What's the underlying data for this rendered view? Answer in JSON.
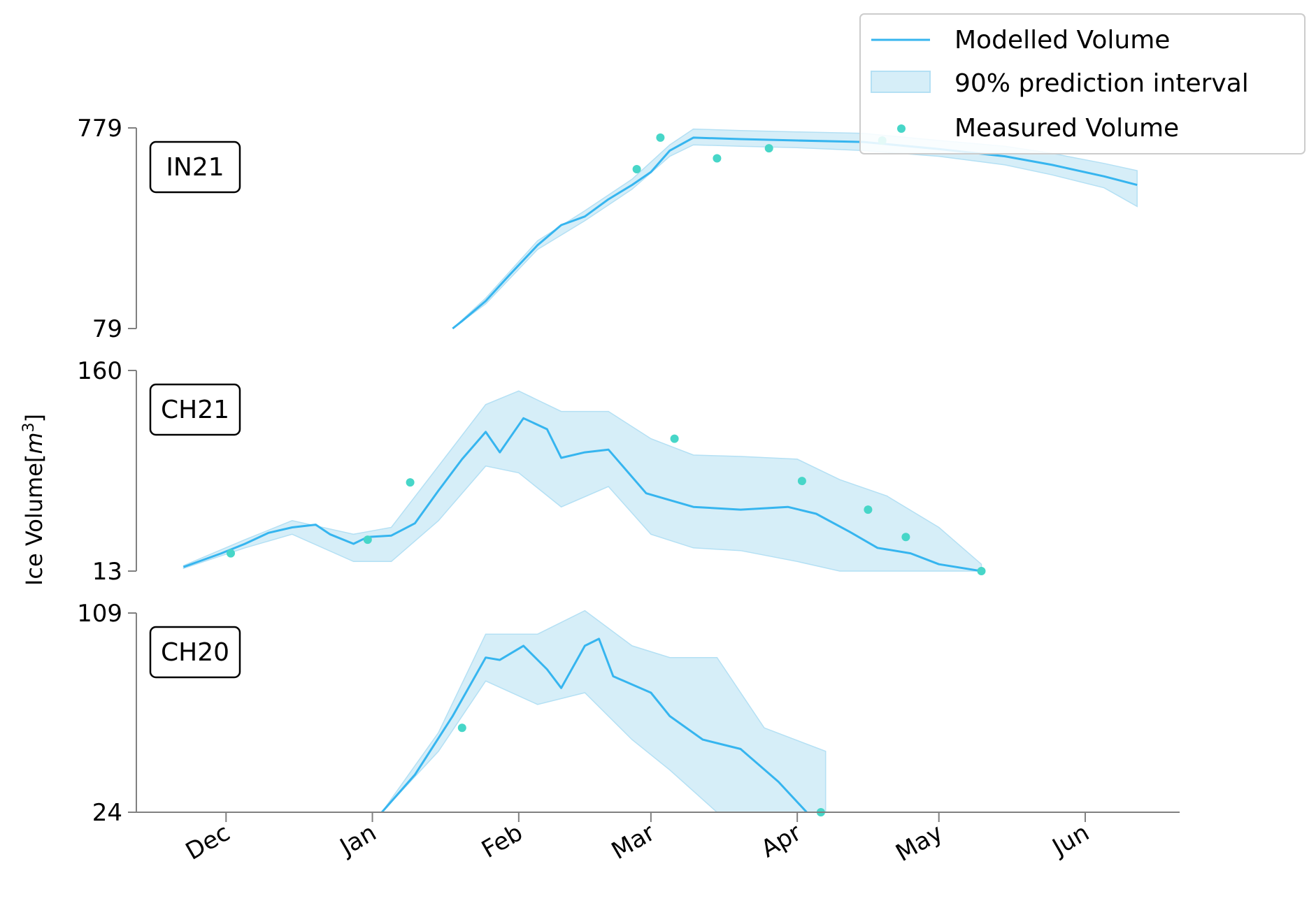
{
  "chart_data": {
    "type": "line",
    "ylabel": "Ice Volume[m³]",
    "ylabel_parts": {
      "base": "Ice Volume[",
      "var": "m",
      "exp": "3",
      "end": "]"
    },
    "x_ticks": [
      "Dec",
      "Jan",
      "Feb",
      "Mar",
      "Apr",
      "May",
      "Jun"
    ],
    "x_tick_dates": [
      "2000-12-01",
      "2001-01-01",
      "2001-02-01",
      "2001-03-01",
      "2001-04-01",
      "2001-05-01",
      "2001-06-01"
    ],
    "x_range": [
      "2000-11-12",
      "2001-06-21"
    ],
    "legend": {
      "placement": "top-right",
      "entries": [
        "Modelled Volume",
        "90% prediction interval",
        "Measured Volume"
      ]
    },
    "colors": {
      "line": "#36b5ef",
      "band": "#d6eef8",
      "band_edge": "#b4e0f4",
      "points": "#47d6c8",
      "axis": "#808080"
    },
    "panels": [
      {
        "label": "IN21",
        "yticks": [
          "779",
          "79"
        ],
        "ylim": [
          79,
          779
        ],
        "modelled": [
          [
            "2001-01-18",
            79
          ],
          [
            "2001-01-20",
            105
          ],
          [
            "2001-01-25",
            175
          ],
          [
            "2001-01-30",
            265
          ],
          [
            "2001-02-05",
            370
          ],
          [
            "2001-02-10",
            440
          ],
          [
            "2001-02-15",
            470
          ],
          [
            "2001-02-20",
            530
          ],
          [
            "2001-02-25",
            580
          ],
          [
            "2001-03-01",
            625
          ],
          [
            "2001-03-05",
            700
          ],
          [
            "2001-03-10",
            745
          ],
          [
            "2001-03-20",
            740
          ],
          [
            "2001-04-01",
            735
          ],
          [
            "2001-04-15",
            730
          ],
          [
            "2001-05-01",
            705
          ],
          [
            "2001-05-15",
            680
          ],
          [
            "2001-05-25",
            650
          ],
          [
            "2001-06-05",
            610
          ],
          [
            "2001-06-12",
            580
          ]
        ],
        "interval": [
          [
            "2001-01-18",
            79,
            79
          ],
          [
            "2001-01-25",
            165,
            185
          ],
          [
            "2001-02-05",
            355,
            385
          ],
          [
            "2001-02-15",
            455,
            490
          ],
          [
            "2001-02-25",
            565,
            600
          ],
          [
            "2001-03-05",
            680,
            720
          ],
          [
            "2001-03-10",
            720,
            775
          ],
          [
            "2001-03-20",
            715,
            770
          ],
          [
            "2001-04-01",
            710,
            765
          ],
          [
            "2001-04-15",
            700,
            760
          ],
          [
            "2001-05-01",
            680,
            735
          ],
          [
            "2001-05-15",
            650,
            715
          ],
          [
            "2001-05-25",
            615,
            690
          ],
          [
            "2001-06-05",
            570,
            655
          ],
          [
            "2001-06-12",
            505,
            630
          ]
        ],
        "measured": [
          [
            "2001-02-26",
            635
          ],
          [
            "2001-03-03",
            745
          ],
          [
            "2001-03-15",
            673
          ],
          [
            "2001-03-26",
            708
          ],
          [
            "2001-04-19",
            735
          ]
        ]
      },
      {
        "label": "CH21",
        "yticks": [
          "160",
          "13"
        ],
        "ylim": [
          13,
          160
        ],
        "modelled": [
          [
            "2000-11-22",
            16
          ],
          [
            "2000-11-30",
            26
          ],
          [
            "2000-12-05",
            33
          ],
          [
            "2000-12-10",
            41
          ],
          [
            "2000-12-15",
            45
          ],
          [
            "2000-12-20",
            47
          ],
          [
            "2000-12-23",
            40
          ],
          [
            "2000-12-28",
            33
          ],
          [
            "2000-12-31",
            38
          ],
          [
            "2001-01-05",
            39
          ],
          [
            "2001-01-10",
            48
          ],
          [
            "2001-01-15",
            72
          ],
          [
            "2001-01-20",
            95
          ],
          [
            "2001-01-25",
            115
          ],
          [
            "2001-01-28",
            100
          ],
          [
            "2001-02-02",
            125
          ],
          [
            "2001-02-07",
            117
          ],
          [
            "2001-02-10",
            96
          ],
          [
            "2001-02-15",
            100
          ],
          [
            "2001-02-20",
            102
          ],
          [
            "2001-02-28",
            70
          ],
          [
            "2001-03-10",
            60
          ],
          [
            "2001-03-20",
            58
          ],
          [
            "2001-03-30",
            60
          ],
          [
            "2001-04-05",
            55
          ],
          [
            "2001-04-12",
            42
          ],
          [
            "2001-04-18",
            30
          ],
          [
            "2001-04-25",
            26
          ],
          [
            "2001-05-01",
            18
          ],
          [
            "2001-05-10",
            13
          ]
        ],
        "interval": [
          [
            "2000-11-22",
            15,
            17
          ],
          [
            "2000-12-05",
            30,
            36
          ],
          [
            "2000-12-15",
            40,
            50
          ],
          [
            "2000-12-28",
            20,
            40
          ],
          [
            "2001-01-05",
            20,
            45
          ],
          [
            "2001-01-15",
            50,
            90
          ],
          [
            "2001-01-25",
            90,
            135
          ],
          [
            "2001-02-01",
            85,
            145
          ],
          [
            "2001-02-10",
            60,
            130
          ],
          [
            "2001-02-20",
            75,
            130
          ],
          [
            "2001-03-01",
            40,
            110
          ],
          [
            "2001-03-10",
            30,
            98
          ],
          [
            "2001-03-20",
            28,
            97
          ],
          [
            "2001-04-01",
            20,
            95
          ],
          [
            "2001-04-10",
            13,
            80
          ],
          [
            "2001-04-20",
            13,
            68
          ],
          [
            "2001-05-01",
            13,
            45
          ],
          [
            "2001-05-10",
            13,
            18
          ]
        ],
        "measured": [
          [
            "2000-12-02",
            26
          ],
          [
            "2000-12-31",
            36
          ],
          [
            "2001-01-09",
            78
          ],
          [
            "2001-03-06",
            110
          ],
          [
            "2001-04-02",
            79
          ],
          [
            "2001-04-16",
            58
          ],
          [
            "2001-04-24",
            38
          ],
          [
            "2001-05-10",
            13
          ]
        ]
      },
      {
        "label": "CH20",
        "yticks": [
          "109",
          "24"
        ],
        "ylim": [
          24,
          109
        ],
        "modelled": [
          [
            "2001-01-03",
            24
          ],
          [
            "2001-01-10",
            40
          ],
          [
            "2001-01-18",
            65
          ],
          [
            "2001-01-25",
            90
          ],
          [
            "2001-01-28",
            89
          ],
          [
            "2001-02-02",
            95
          ],
          [
            "2001-02-07",
            85
          ],
          [
            "2001-02-10",
            77
          ],
          [
            "2001-02-15",
            95
          ],
          [
            "2001-02-18",
            98
          ],
          [
            "2001-02-21",
            82
          ],
          [
            "2001-03-01",
            75
          ],
          [
            "2001-03-05",
            65
          ],
          [
            "2001-03-12",
            55
          ],
          [
            "2001-03-20",
            51
          ],
          [
            "2001-03-28",
            37
          ],
          [
            "2001-04-03",
            24
          ]
        ],
        "interval": [
          [
            "2001-01-03",
            24,
            24
          ],
          [
            "2001-01-15",
            50,
            58
          ],
          [
            "2001-01-25",
            80,
            100
          ],
          [
            "2001-02-05",
            70,
            100
          ],
          [
            "2001-02-15",
            75,
            110
          ],
          [
            "2001-02-25",
            55,
            95
          ],
          [
            "2001-03-05",
            42,
            90
          ],
          [
            "2001-03-15",
            24,
            90
          ],
          [
            "2001-03-25",
            24,
            60
          ],
          [
            "2001-04-07",
            24,
            50
          ]
        ],
        "measured": [
          [
            "2001-01-20",
            60
          ],
          [
            "2001-04-06",
            24
          ]
        ]
      }
    ]
  }
}
